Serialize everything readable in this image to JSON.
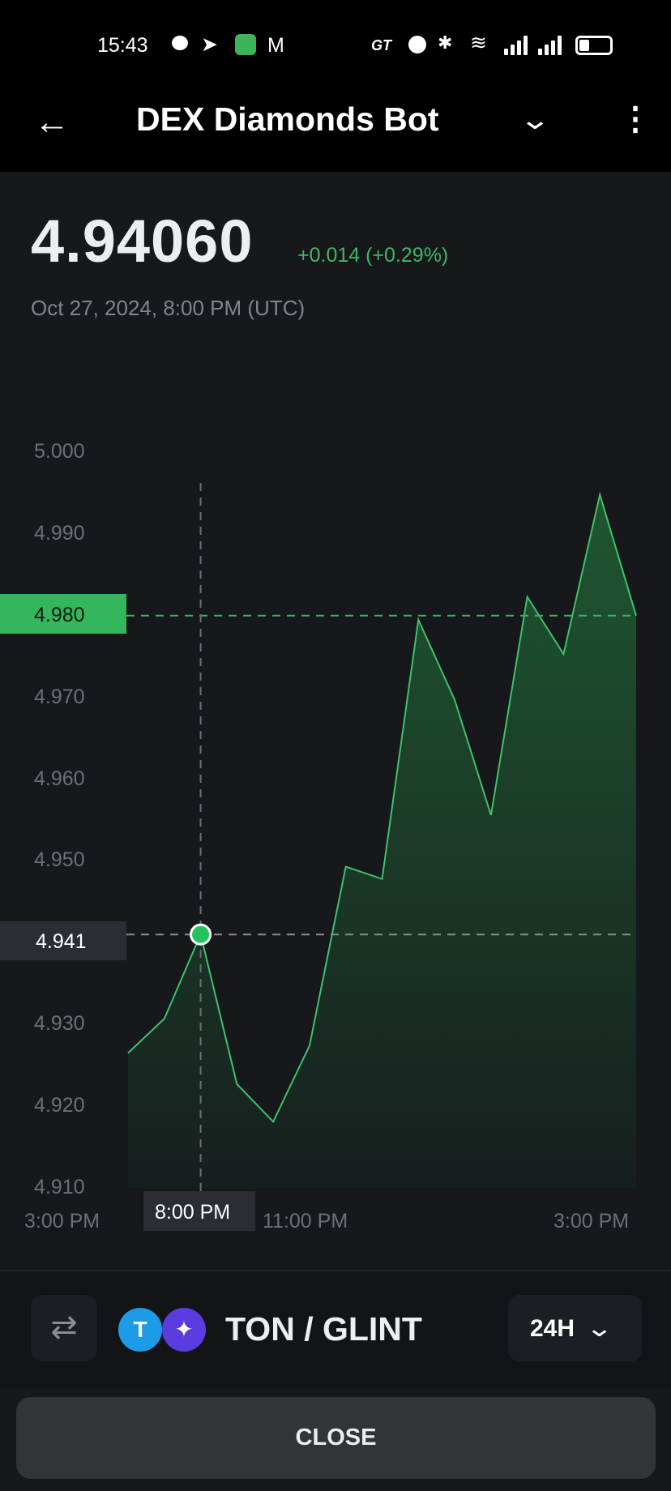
{
  "status_bar": {
    "time": "15:43",
    "right_text": "GT"
  },
  "app_bar": {
    "title": "DEX Diamonds Bot"
  },
  "price": {
    "value": "4.94060",
    "change": "+0.014 (+0.29%)",
    "date": "Oct 27, 2024, 8:00 PM (UTC)"
  },
  "chart_data": {
    "type": "area",
    "ylim": [
      4.91,
      5.0
    ],
    "y_ticks": [
      "5.000",
      "4.990",
      "4.980",
      "4.970",
      "4.960",
      "4.950",
      "4.930",
      "4.920",
      "4.910"
    ],
    "x_ticks": [
      "3:00 PM",
      "11:00 PM",
      "3:00 PM"
    ],
    "values": [
      4.9265,
      4.9307,
      4.941,
      4.9227,
      4.9181,
      4.9274,
      4.9493,
      4.9478,
      4.9795,
      4.9697,
      4.9556,
      4.9823,
      4.9753,
      4.9948,
      4.98
    ],
    "last_value_label": "4.980",
    "crosshair": {
      "index": 2,
      "value_label": "4.941",
      "time_label": "8:00 PM"
    },
    "colors": {
      "line": "#3fc16a",
      "fill": "#1f5a32",
      "highlight": "#34b65c"
    },
    "grid": false
  },
  "footer": {
    "pair": "TON / GLINT",
    "period": "24H",
    "close_label": "CLOSE",
    "base_icon": "T",
    "quote_icon": "✦"
  }
}
